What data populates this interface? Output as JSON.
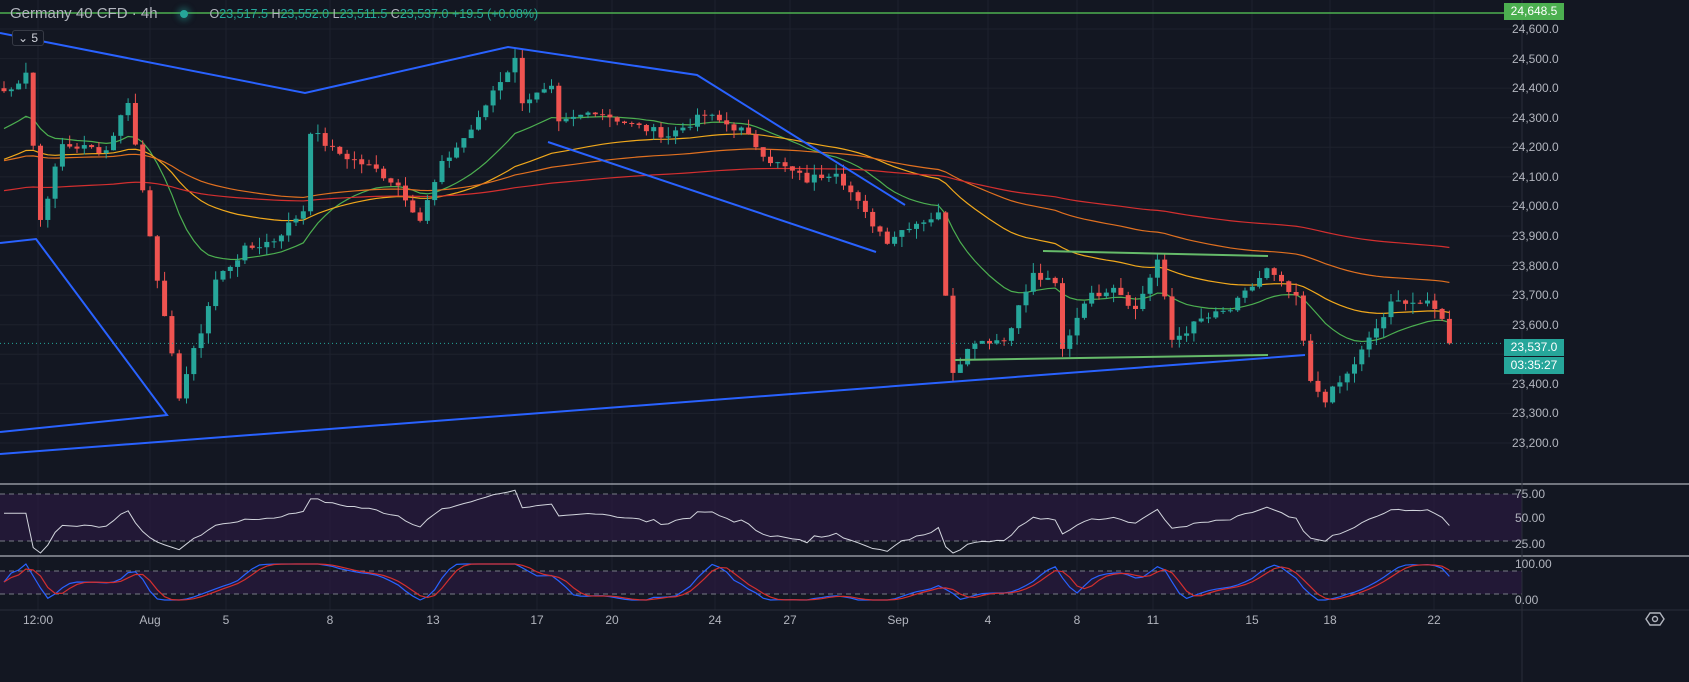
{
  "header": {
    "symbol": "Germany 40 CFD · 4h",
    "open_label": "O",
    "open": "23,517.5",
    "high_label": "H",
    "high": "23,552.0",
    "low_label": "L",
    "low": "23,511.5",
    "close_label": "C",
    "close": "23,537.0",
    "change": "+19.5 (+0.08%)",
    "indicators_count": "5"
  },
  "price_axis": {
    "ticks": [
      "24,600.0",
      "24,500.0",
      "24,400.0",
      "24,300.0",
      "24,200.0",
      "24,100.0",
      "24,000.0",
      "23,900.0",
      "23,800.0",
      "23,700.0",
      "23,600.0",
      "23,400.0",
      "23,300.0",
      "23,200.0"
    ],
    "alert_price": "24,648.5",
    "last_price": "23,537.0",
    "countdown": "03:35:27"
  },
  "rsi_axis": [
    "75.00",
    "50.00",
    "25.00"
  ],
  "stoch_axis": [
    "100.00",
    "0.00"
  ],
  "time_axis": [
    "12:00",
    "Aug",
    "5",
    "8",
    "13",
    "17",
    "20",
    "24",
    "27",
    "Sep",
    "4",
    "8",
    "11",
    "15",
    "18",
    "22"
  ],
  "colors": {
    "up": "#26a69a",
    "down": "#ef5350",
    "ema20": "#4caf50",
    "ema50": "#f0a81c",
    "ema100": "#e07020",
    "ema200": "#d32f2f",
    "alert": "#4caf50",
    "drawing": "#2962ff"
  },
  "chart_data": {
    "type": "candlestick",
    "price_range": [
      23150,
      24680
    ],
    "alert_level": 24648.5,
    "last_price": 23537.0,
    "close_waypoints": [
      [
        0,
        24390
      ],
      [
        1,
        24394
      ],
      [
        3,
        24460
      ],
      [
        5,
        23954
      ],
      [
        8,
        24208
      ],
      [
        14,
        24190
      ],
      [
        17,
        24360
      ],
      [
        19,
        24055
      ],
      [
        22,
        23616
      ],
      [
        24,
        23362
      ],
      [
        27,
        23580
      ],
      [
        29,
        23751
      ],
      [
        33,
        23853
      ],
      [
        37,
        23887
      ],
      [
        41,
        23988
      ],
      [
        42,
        24258
      ],
      [
        45,
        24190
      ],
      [
        51,
        24123
      ],
      [
        54,
        24072
      ],
      [
        57,
        23954
      ],
      [
        60,
        24140
      ],
      [
        65,
        24292
      ],
      [
        67,
        24394
      ],
      [
        70,
        24495
      ],
      [
        71,
        24360
      ],
      [
        75,
        24394
      ],
      [
        76,
        24275
      ],
      [
        81,
        24326
      ],
      [
        86,
        24275
      ],
      [
        91,
        24241
      ],
      [
        96,
        24309
      ],
      [
        101,
        24258
      ],
      [
        105,
        24157
      ],
      [
        110,
        24089
      ],
      [
        114,
        24123
      ],
      [
        118,
        23971
      ],
      [
        121,
        23887
      ],
      [
        124,
        23937
      ],
      [
        128,
        23971
      ],
      [
        130,
        23447
      ],
      [
        133,
        23548
      ],
      [
        137,
        23548
      ],
      [
        141,
        23768
      ],
      [
        144,
        23734
      ],
      [
        145,
        23514
      ],
      [
        148,
        23684
      ],
      [
        152,
        23734
      ],
      [
        155,
        23650
      ],
      [
        158,
        23819
      ],
      [
        160,
        23548
      ],
      [
        164,
        23616
      ],
      [
        168,
        23650
      ],
      [
        173,
        23785
      ],
      [
        177,
        23684
      ],
      [
        179,
        23400
      ],
      [
        181,
        23350
      ],
      [
        184,
        23430
      ],
      [
        187,
        23548
      ],
      [
        190,
        23667
      ],
      [
        192,
        23684
      ],
      [
        195,
        23667
      ],
      [
        197,
        23630
      ],
      [
        198,
        23537
      ]
    ]
  }
}
